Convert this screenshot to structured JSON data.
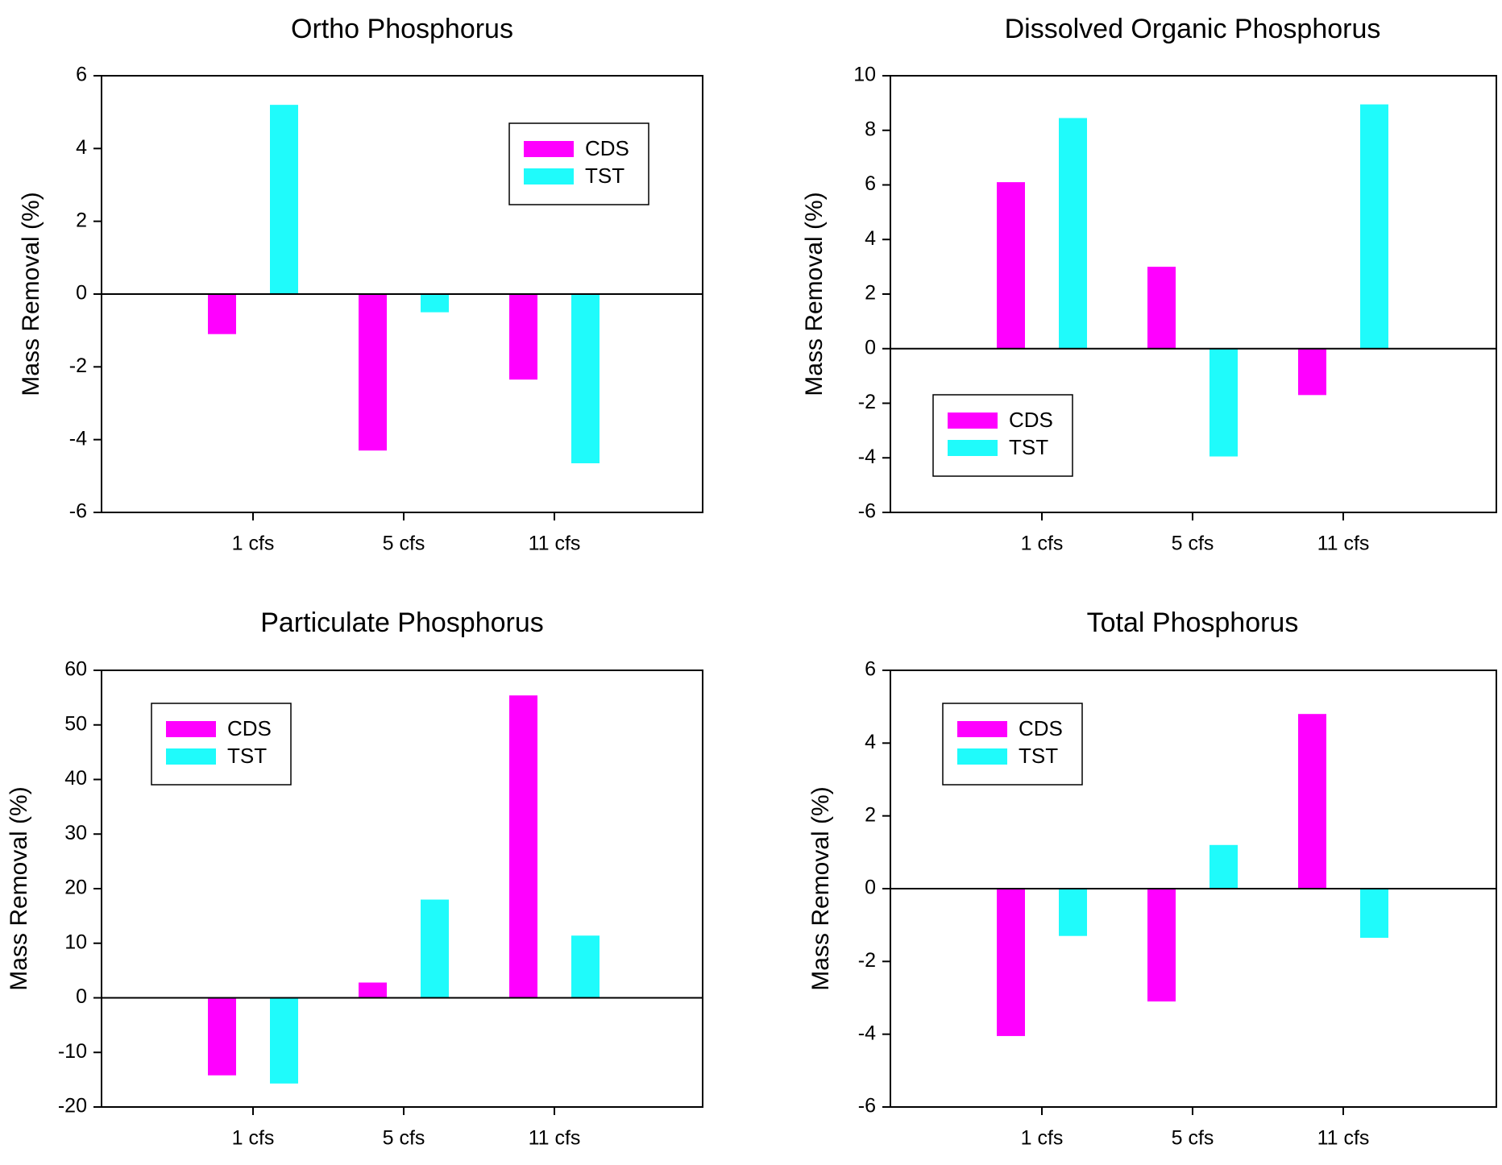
{
  "colors": {
    "CDS": "#ff00ff",
    "TST": "#1ffbfb"
  },
  "chart_data": [
    {
      "type": "bar",
      "title": "Ortho Phosphorus",
      "ylabel": "Mass Removal (%)",
      "xlabel": "",
      "categories": [
        "1 cfs",
        "5 cfs",
        "11 cfs"
      ],
      "ylim": [
        -6,
        6
      ],
      "yticks": [
        "-6",
        "-4",
        "-2",
        "0",
        "2",
        "4",
        "6"
      ],
      "legend": "top-right",
      "grid": false,
      "series": [
        {
          "name": "CDS",
          "values": [
            -1.1,
            -4.3,
            -2.35
          ]
        },
        {
          "name": "TST",
          "values": [
            5.2,
            -0.5,
            -4.65
          ]
        }
      ]
    },
    {
      "type": "bar",
      "title": "Dissolved Organic Phosphorus",
      "ylabel": "Mass Removal (%)",
      "xlabel": "",
      "categories": [
        "1 cfs",
        "5 cfs",
        "11 cfs"
      ],
      "ylim": [
        -6,
        10
      ],
      "yticks": [
        "-6",
        "-4",
        "-2",
        "0",
        "2",
        "4",
        "6",
        "8",
        "10"
      ],
      "legend": "bottom-left",
      "grid": false,
      "series": [
        {
          "name": "CDS",
          "values": [
            6.1,
            3.0,
            -1.7
          ]
        },
        {
          "name": "TST",
          "values": [
            8.45,
            -3.95,
            8.95
          ]
        }
      ]
    },
    {
      "type": "bar",
      "title": "Particulate Phosphorus",
      "ylabel": "Mass Removal (%)",
      "xlabel": "",
      "categories": [
        "1 cfs",
        "5 cfs",
        "11 cfs"
      ],
      "ylim": [
        -20,
        60
      ],
      "yticks": [
        "-20",
        "-10",
        "0",
        "10",
        "20",
        "30",
        "40",
        "50",
        "60"
      ],
      "legend": "top-left",
      "grid": false,
      "series": [
        {
          "name": "CDS",
          "values": [
            -14.2,
            2.8,
            55.4
          ]
        },
        {
          "name": "TST",
          "values": [
            -15.7,
            18.0,
            11.4
          ]
        }
      ]
    },
    {
      "type": "bar",
      "title": "Total Phosphorus",
      "ylabel": "Mass Removal (%)",
      "xlabel": "",
      "categories": [
        "1 cfs",
        "5 cfs",
        "11 cfs"
      ],
      "ylim": [
        -6,
        6
      ],
      "yticks": [
        "-6",
        "-4",
        "-2",
        "0",
        "2",
        "4",
        "6"
      ],
      "legend": "top-left",
      "grid": false,
      "series": [
        {
          "name": "CDS",
          "values": [
            -4.05,
            -3.1,
            4.8
          ]
        },
        {
          "name": "TST",
          "values": [
            -1.3,
            1.2,
            -1.35
          ]
        }
      ]
    }
  ]
}
